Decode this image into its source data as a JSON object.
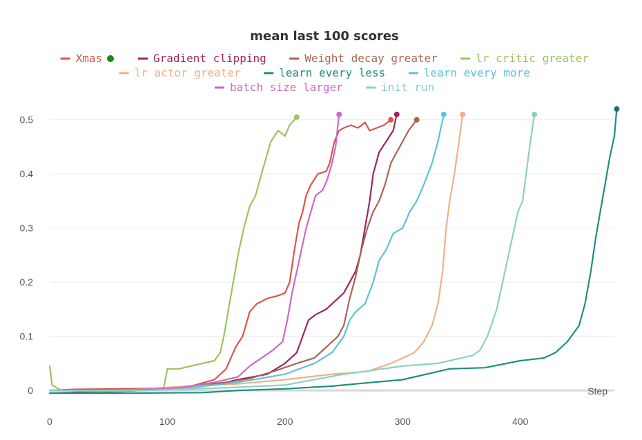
{
  "chart_data": {
    "type": "line",
    "title": "mean last 100 scores",
    "xlabel": "Step",
    "ylabel": "",
    "xlim": [
      0,
      480
    ],
    "ylim": [
      0,
      0.52
    ],
    "x_ticks": [
      0,
      100,
      200,
      300,
      400
    ],
    "y_ticks": [
      0,
      0.1,
      0.2,
      0.3,
      0.4,
      0.5
    ],
    "grid": true,
    "legend_position": "top",
    "series": [
      {
        "name": "Xmas",
        "color": "#e0524a",
        "highlight": true,
        "highlight_color": "#1a8a1a",
        "points": [
          [
            0,
            0
          ],
          [
            20,
            0.002
          ],
          [
            60,
            0.003
          ],
          [
            90,
            0.004
          ],
          [
            120,
            0.008
          ],
          [
            140,
            0.02
          ],
          [
            150,
            0.04
          ],
          [
            158,
            0.08
          ],
          [
            164,
            0.1
          ],
          [
            170,
            0.145
          ],
          [
            176,
            0.16
          ],
          [
            185,
            0.17
          ],
          [
            194,
            0.175
          ],
          [
            200,
            0.18
          ],
          [
            204,
            0.2
          ],
          [
            208,
            0.26
          ],
          [
            212,
            0.31
          ],
          [
            215,
            0.33
          ],
          [
            218,
            0.36
          ],
          [
            222,
            0.38
          ],
          [
            225,
            0.39
          ],
          [
            228,
            0.4
          ],
          [
            235,
            0.405
          ],
          [
            238,
            0.42
          ],
          [
            242,
            0.46
          ],
          [
            246,
            0.48
          ],
          [
            250,
            0.485
          ],
          [
            256,
            0.49
          ],
          [
            262,
            0.485
          ],
          [
            268,
            0.495
          ],
          [
            272,
            0.48
          ],
          [
            278,
            0.485
          ],
          [
            284,
            0.49
          ],
          [
            290,
            0.5
          ]
        ]
      },
      {
        "name": "Gradient clipping",
        "color": "#a0235e",
        "points": [
          [
            0,
            -0.005
          ],
          [
            40,
            -0.003
          ],
          [
            80,
            0
          ],
          [
            110,
            0.005
          ],
          [
            140,
            0.01
          ],
          [
            160,
            0.02
          ],
          [
            185,
            0.03
          ],
          [
            200,
            0.05
          ],
          [
            210,
            0.07
          ],
          [
            215,
            0.1
          ],
          [
            220,
            0.13
          ],
          [
            226,
            0.14
          ],
          [
            235,
            0.15
          ],
          [
            245,
            0.17
          ],
          [
            250,
            0.18
          ],
          [
            255,
            0.2
          ],
          [
            260,
            0.22
          ],
          [
            264,
            0.25
          ],
          [
            268,
            0.3
          ],
          [
            272,
            0.35
          ],
          [
            275,
            0.4
          ],
          [
            280,
            0.44
          ],
          [
            286,
            0.46
          ],
          [
            292,
            0.48
          ],
          [
            295,
            0.51
          ]
        ]
      },
      {
        "name": "Weight decay greater",
        "color": "#a86450",
        "points": [
          [
            0,
            0
          ],
          [
            60,
            0
          ],
          [
            100,
            0.005
          ],
          [
            130,
            0.01
          ],
          [
            150,
            0.015
          ],
          [
            170,
            0.022
          ],
          [
            190,
            0.035
          ],
          [
            210,
            0.05
          ],
          [
            225,
            0.06
          ],
          [
            235,
            0.08
          ],
          [
            245,
            0.1
          ],
          [
            250,
            0.12
          ],
          [
            255,
            0.17
          ],
          [
            260,
            0.21
          ],
          [
            265,
            0.26
          ],
          [
            270,
            0.3
          ],
          [
            275,
            0.33
          ],
          [
            280,
            0.35
          ],
          [
            285,
            0.38
          ],
          [
            290,
            0.42
          ],
          [
            295,
            0.44
          ],
          [
            300,
            0.46
          ],
          [
            305,
            0.48
          ],
          [
            312,
            0.5
          ]
        ]
      },
      {
        "name": "lr critic greater",
        "color": "#9ac45c",
        "points": [
          [
            0,
            0.045
          ],
          [
            2,
            0.01
          ],
          [
            10,
            0
          ],
          [
            40,
            -0.002
          ],
          [
            80,
            0
          ],
          [
            97,
            0.005
          ],
          [
            100,
            0.04
          ],
          [
            110,
            0.04
          ],
          [
            120,
            0.045
          ],
          [
            130,
            0.05
          ],
          [
            140,
            0.055
          ],
          [
            145,
            0.07
          ],
          [
            148,
            0.1
          ],
          [
            152,
            0.15
          ],
          [
            156,
            0.2
          ],
          [
            160,
            0.25
          ],
          [
            165,
            0.3
          ],
          [
            170,
            0.34
          ],
          [
            175,
            0.36
          ],
          [
            180,
            0.4
          ],
          [
            184,
            0.43
          ],
          [
            188,
            0.46
          ],
          [
            194,
            0.48
          ],
          [
            200,
            0.47
          ],
          [
            204,
            0.49
          ],
          [
            210,
            0.505
          ]
        ]
      },
      {
        "name": "lr actor greater",
        "color": "#f0b088",
        "points": [
          [
            0,
            0
          ],
          [
            60,
            0
          ],
          [
            120,
            0.008
          ],
          [
            160,
            0.012
          ],
          [
            200,
            0.02
          ],
          [
            240,
            0.03
          ],
          [
            270,
            0.035
          ],
          [
            290,
            0.05
          ],
          [
            300,
            0.06
          ],
          [
            310,
            0.07
          ],
          [
            318,
            0.09
          ],
          [
            325,
            0.12
          ],
          [
            330,
            0.16
          ],
          [
            334,
            0.22
          ],
          [
            337,
            0.3
          ],
          [
            340,
            0.35
          ],
          [
            344,
            0.4
          ],
          [
            348,
            0.46
          ],
          [
            351,
            0.51
          ]
        ]
      },
      {
        "name": "learn every less",
        "color": "#1e8e7e",
        "highlight_color": "#1e7070",
        "points": [
          [
            0,
            -0.005
          ],
          [
            60,
            -0.005
          ],
          [
            130,
            -0.004
          ],
          [
            160,
            0
          ],
          [
            200,
            0.003
          ],
          [
            240,
            0.008
          ],
          [
            260,
            0.012
          ],
          [
            300,
            0.02
          ],
          [
            340,
            0.04
          ],
          [
            370,
            0.042
          ],
          [
            400,
            0.055
          ],
          [
            420,
            0.06
          ],
          [
            430,
            0.07
          ],
          [
            440,
            0.09
          ],
          [
            450,
            0.12
          ],
          [
            455,
            0.16
          ],
          [
            460,
            0.22
          ],
          [
            464,
            0.28
          ],
          [
            468,
            0.33
          ],
          [
            472,
            0.38
          ],
          [
            476,
            0.43
          ],
          [
            480,
            0.47
          ],
          [
            482,
            0.52
          ]
        ]
      },
      {
        "name": "learn every more",
        "color": "#5bc2d8",
        "points": [
          [
            0,
            0
          ],
          [
            80,
            0
          ],
          [
            120,
            0.005
          ],
          [
            160,
            0.015
          ],
          [
            200,
            0.03
          ],
          [
            225,
            0.05
          ],
          [
            240,
            0.07
          ],
          [
            250,
            0.1
          ],
          [
            255,
            0.13
          ],
          [
            260,
            0.145
          ],
          [
            268,
            0.16
          ],
          [
            275,
            0.2
          ],
          [
            280,
            0.24
          ],
          [
            286,
            0.26
          ],
          [
            292,
            0.29
          ],
          [
            300,
            0.3
          ],
          [
            306,
            0.33
          ],
          [
            312,
            0.35
          ],
          [
            318,
            0.38
          ],
          [
            325,
            0.42
          ],
          [
            330,
            0.46
          ],
          [
            335,
            0.51
          ]
        ]
      },
      {
        "name": "batch size larger",
        "color": "#cc68c8",
        "points": [
          [
            0,
            0
          ],
          [
            60,
            0
          ],
          [
            110,
            0.005
          ],
          [
            140,
            0.015
          ],
          [
            160,
            0.025
          ],
          [
            170,
            0.045
          ],
          [
            180,
            0.06
          ],
          [
            190,
            0.075
          ],
          [
            198,
            0.09
          ],
          [
            202,
            0.13
          ],
          [
            206,
            0.18
          ],
          [
            210,
            0.22
          ],
          [
            214,
            0.26
          ],
          [
            218,
            0.3
          ],
          [
            222,
            0.33
          ],
          [
            226,
            0.36
          ],
          [
            232,
            0.37
          ],
          [
            236,
            0.39
          ],
          [
            240,
            0.42
          ],
          [
            243,
            0.45
          ],
          [
            246,
            0.51
          ]
        ]
      },
      {
        "name": "init run",
        "color": "#8ad0c4",
        "points": [
          [
            0,
            0
          ],
          [
            80,
            0
          ],
          [
            150,
            0.005
          ],
          [
            200,
            0.01
          ],
          [
            250,
            0.03
          ],
          [
            300,
            0.045
          ],
          [
            330,
            0.05
          ],
          [
            350,
            0.06
          ],
          [
            360,
            0.065
          ],
          [
            366,
            0.075
          ],
          [
            372,
            0.1
          ],
          [
            380,
            0.15
          ],
          [
            385,
            0.2
          ],
          [
            390,
            0.25
          ],
          [
            395,
            0.3
          ],
          [
            398,
            0.33
          ],
          [
            402,
            0.35
          ],
          [
            405,
            0.4
          ],
          [
            408,
            0.45
          ],
          [
            410,
            0.48
          ],
          [
            412,
            0.51
          ]
        ]
      }
    ]
  }
}
